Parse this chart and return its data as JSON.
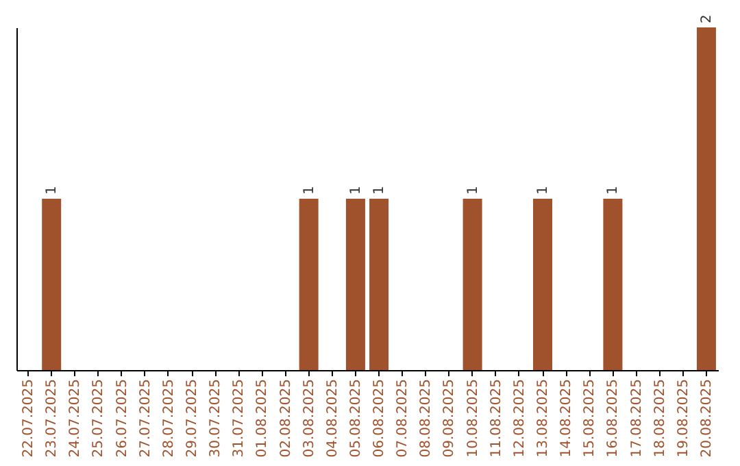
{
  "chart_data": {
    "type": "bar",
    "categories": [
      "22.07.2025",
      "23.07.2025",
      "24.07.2025",
      "25.07.2025",
      "26.07.2025",
      "27.07.2025",
      "28.07.2025",
      "29.07.2025",
      "30.07.2025",
      "31.07.2025",
      "01.08.2025",
      "02.08.2025",
      "03.08.2025",
      "04.08.2025",
      "05.08.2025",
      "06.08.2025",
      "07.08.2025",
      "08.08.2025",
      "09.08.2025",
      "10.08.2025",
      "11.08.2025",
      "12.08.2025",
      "13.08.2025",
      "14.08.2025",
      "15.08.2025",
      "16.08.2025",
      "17.08.2025",
      "18.08.2025",
      "19.08.2025",
      "20.08.2025"
    ],
    "values": [
      0,
      1,
      0,
      0,
      0,
      0,
      0,
      0,
      0,
      0,
      0,
      0,
      1,
      0,
      1,
      1,
      0,
      0,
      0,
      1,
      0,
      0,
      1,
      0,
      0,
      1,
      0,
      0,
      0,
      2
    ],
    "value_labels": [
      null,
      "1",
      null,
      null,
      null,
      null,
      null,
      null,
      null,
      null,
      null,
      null,
      "1",
      null,
      "1",
      "1",
      null,
      null,
      null,
      "1",
      null,
      null,
      "1",
      null,
      null,
      "1",
      null,
      null,
      null,
      "2"
    ],
    "color": "#a0522d",
    "tick_labels": "x"
  }
}
